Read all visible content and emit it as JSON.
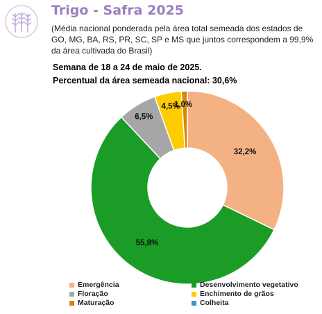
{
  "header": {
    "title": "Trigo - Safra 2025",
    "subtitle": "(Média nacional ponderada pela área total semeada dos estados de GO, MG, BA, RS, PR, SC, SP e MS que juntos correspondem a 99,9% da área cultivada do Brasil)",
    "week": "Semana de 18 a 24 de maio de 2025.",
    "percent": "Percentual da área semeada nacional: 30,6%",
    "logo_icon": "wheat-icon",
    "logo_color": "#c9b6e0"
  },
  "chart_data": {
    "type": "pie",
    "donut": true,
    "slices": [
      {
        "name": "Emergência",
        "value": 32.2,
        "label": "32,2%",
        "color": "#f4b183"
      },
      {
        "name": "Desenvolvimento vegetativo",
        "value": 55.8,
        "label": "55,8%",
        "color": "#1a9c26"
      },
      {
        "name": "Floração",
        "value": 6.5,
        "label": "6,5%",
        "color": "#a6a6a6"
      },
      {
        "name": "Enchimento de grãos",
        "value": 4.5,
        "label": "4,5%",
        "color": "#ffcc00"
      },
      {
        "name": "Maturação",
        "value": 1.0,
        "label": "1,0%",
        "color": "#d9840a"
      },
      {
        "name": "Colheita",
        "value": 0,
        "label": "",
        "color": "#4a90c8"
      }
    ],
    "legend_position": "bottom"
  }
}
